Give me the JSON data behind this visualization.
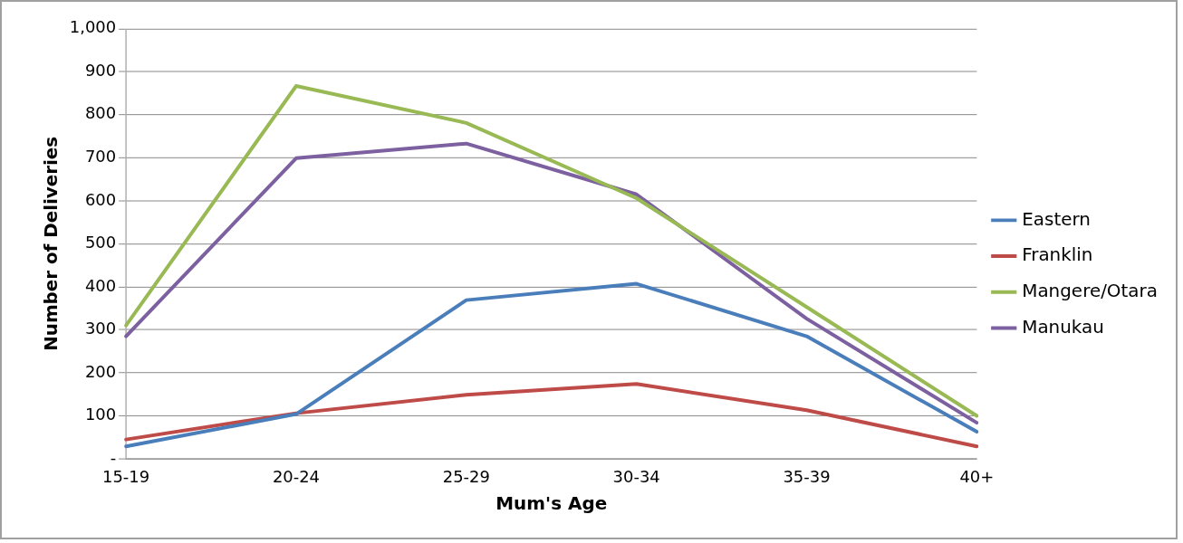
{
  "chart_data": {
    "type": "line",
    "xlabel": "Mum's Age",
    "ylabel": "Number of Deliveries",
    "categories": [
      "15-19",
      "20-24",
      "25-29",
      "30-34",
      "35-39",
      "40+"
    ],
    "series": [
      {
        "name": "Eastern",
        "color": "#4a7ebb",
        "values": [
          29,
          104,
          369,
          407,
          285,
          63
        ]
      },
      {
        "name": "Franklin",
        "color": "#be4b48",
        "values": [
          45,
          106,
          149,
          174,
          113,
          29
        ]
      },
      {
        "name": "Mangere/Otara",
        "color": "#98b954",
        "values": [
          310,
          867,
          781,
          606,
          353,
          100
        ]
      },
      {
        "name": "Manukau",
        "color": "#7d60a0",
        "values": [
          285,
          699,
          733,
          615,
          326,
          84
        ]
      }
    ],
    "ylim": [
      0,
      1000
    ],
    "yticks": [
      {
        "value": 0,
        "label": "-"
      },
      100,
      200,
      300,
      400,
      500,
      600,
      700,
      800,
      900,
      {
        "value": 1000,
        "label": "1,000"
      }
    ],
    "grid": "y",
    "legend": "right",
    "marker": "none",
    "line_style": "solid"
  }
}
